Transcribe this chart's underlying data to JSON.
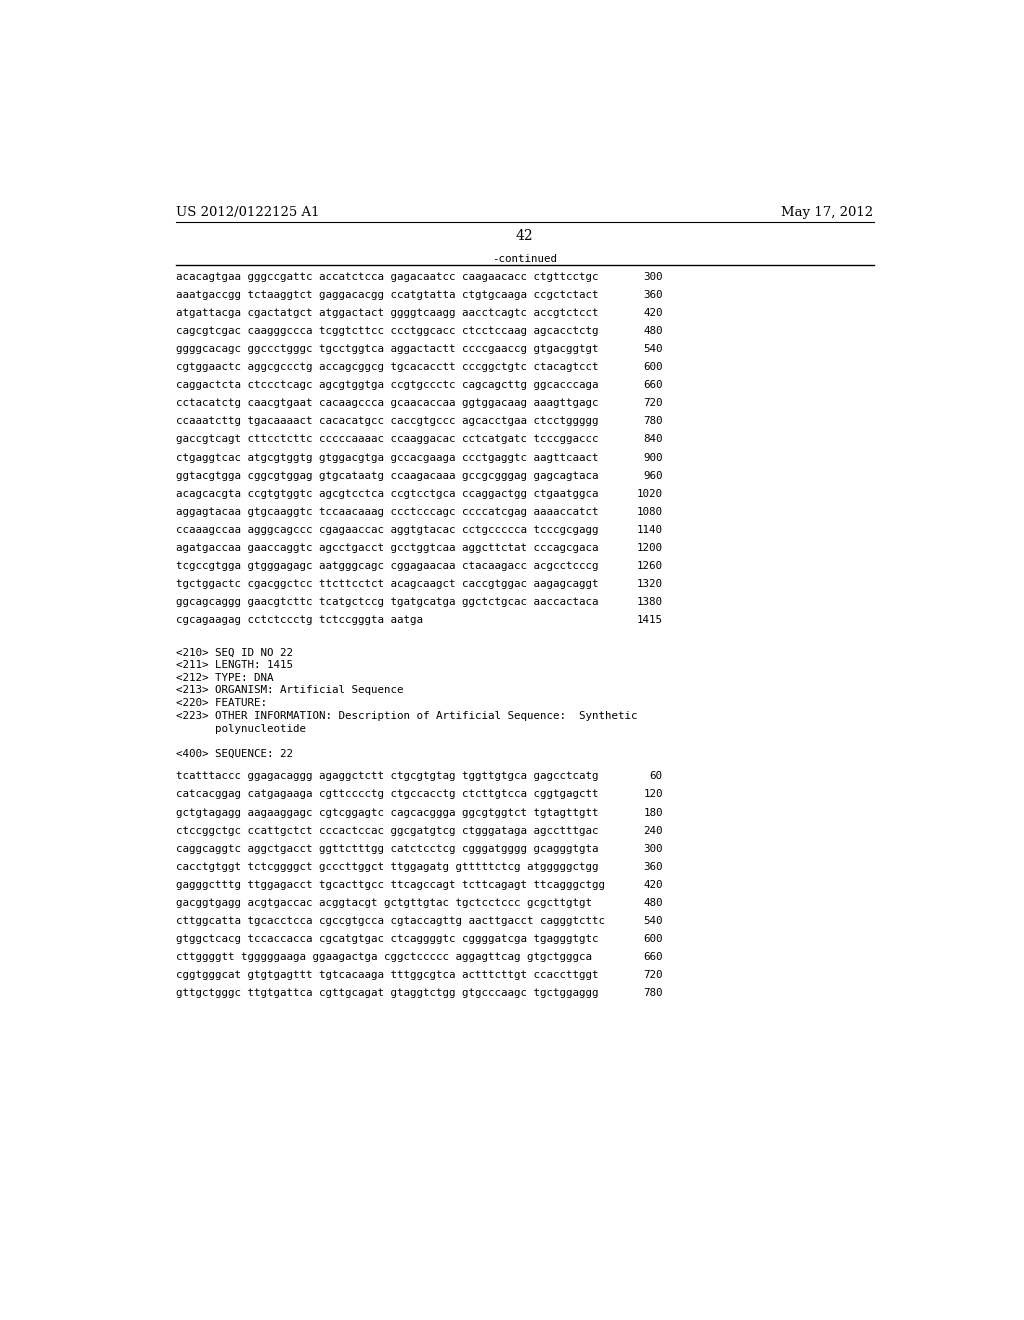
{
  "header_left": "US 2012/0122125 A1",
  "header_right": "May 17, 2012",
  "page_number": "42",
  "continued_label": "-continued",
  "background_color": "#ffffff",
  "text_color": "#000000",
  "font_size_header": 9.5,
  "font_size_body": 7.8,
  "font_size_page": 10.0,
  "sequence_lines_top": [
    [
      "acacagtgaa gggccgattc accatctcca gagacaatcc caagaacacc ctgttcctgc",
      "300"
    ],
    [
      "aaatgaccgg tctaaggtct gaggacacgg ccatgtatta ctgtgcaaga ccgctctact",
      "360"
    ],
    [
      "atgattacga cgactatgct atggactact ggggtcaagg aacctcagtc accgtctcct",
      "420"
    ],
    [
      "cagcgtcgac caagggccca tcggtcttcc ccctggcacc ctcctccaag agcacctctg",
      "480"
    ],
    [
      "ggggcacagc ggccctgggc tgcctggtca aggactactt ccccgaaccg gtgacggtgt",
      "540"
    ],
    [
      "cgtggaactc aggcgccctg accagcggcg tgcacacctt cccggctgtc ctacagtcct",
      "600"
    ],
    [
      "caggactcta ctccctcagc agcgtggtga ccgtgccctc cagcagcttg ggcacccaga",
      "660"
    ],
    [
      "cctacatctg caacgtgaat cacaagccca gcaacaccaa ggtggacaag aaagttgagc",
      "720"
    ],
    [
      "ccaaatcttg tgacaaaact cacacatgcc caccgtgccc agcacctgaa ctcctggggg",
      "780"
    ],
    [
      "gaccgtcagt cttcctcttc cccccaaaac ccaaggacac cctcatgatc tcccggaccc",
      "840"
    ],
    [
      "ctgaggtcac atgcgtggtg gtggacgtga gccacgaaga ccctgaggtc aagttcaact",
      "900"
    ],
    [
      "ggtacgtgga cggcgtggag gtgcataatg ccaagacaaa gccgcgggag gagcagtaca",
      "960"
    ],
    [
      "acagcacgta ccgtgtggtc agcgtcctca ccgtcctgca ccaggactgg ctgaatggca",
      "1020"
    ],
    [
      "aggagtacaa gtgcaaggtc tccaacaaag ccctcccagc ccccatcgag aaaaccatct",
      "1080"
    ],
    [
      "ccaaagccaa agggcagccc cgagaaccac aggtgtacac cctgccccca tcccgcgagg",
      "1140"
    ],
    [
      "agatgaccaa gaaccaggtc agcctgacct gcctggtcaa aggcttctat cccagcgaca",
      "1200"
    ],
    [
      "tcgccgtgga gtgggagagc aatgggcagc cggagaacaa ctacaagacc acgcctcccg",
      "1260"
    ],
    [
      "tgctggactc cgacggctcc ttcttcctct acagcaagct caccgtggac aagagcaggt",
      "1320"
    ],
    [
      "ggcagcaggg gaacgtcttc tcatgctccg tgatgcatga ggctctgcac aaccactaca",
      "1380"
    ],
    [
      "cgcagaagag cctctccctg tctccgggta aatga",
      "1415"
    ]
  ],
  "metadata_lines": [
    "<210> SEQ ID NO 22",
    "<211> LENGTH: 1415",
    "<212> TYPE: DNA",
    "<213> ORGANISM: Artificial Sequence",
    "<220> FEATURE:",
    "<223> OTHER INFORMATION: Description of Artificial Sequence:  Synthetic",
    "      polynucleotide"
  ],
  "sequence_label": "<400> SEQUENCE: 22",
  "sequence_lines_bottom": [
    [
      "tcatttaccc ggagacaggg agaggctctt ctgcgtgtag tggttgtgca gagcctcatg",
      "60"
    ],
    [
      "catcacggag catgagaaga cgttcccctg ctgccacctg ctcttgtcca cggtgagctt",
      "120"
    ],
    [
      "gctgtagagg aagaaggagc cgtcggagtc cagcacggga ggcgtggtct tgtagttgtt",
      "180"
    ],
    [
      "ctccggctgc ccattgctct cccactccac ggcgatgtcg ctgggataga agcctttgac",
      "240"
    ],
    [
      "caggcaggtc aggctgacct ggttctttgg catctcctcg cgggatgggg gcagggtgta",
      "300"
    ],
    [
      "cacctgtggt tctcggggct gcccttggct ttggagatg gtttttctcg atgggggctgg",
      "360"
    ],
    [
      "gagggctttg ttggagacct tgcacttgcc ttcagccagt tcttcagagt ttcagggctgg",
      "420"
    ],
    [
      "gacggtgagg acgtgaccac acggtacgt gctgttgtac tgctcctccc gcgcttgtgt",
      "480"
    ],
    [
      "cttggcatta tgcacctcca cgccgtgcca cgtaccagttg aacttgacct cagggtcttc",
      "540"
    ],
    [
      "gtggctcacg tccaccacca cgcatgtgac ctcaggggtc cggggatcga tgagggtgtc",
      "600"
    ],
    [
      "cttggggtt tgggggaaga ggaagactga cggctccccc aggagttcag gtgctgggca",
      "660"
    ],
    [
      "cggtgggcat gtgtgagttt tgtcacaaga tttggcgtca actttcttgt ccaccttggt",
      "720"
    ],
    [
      "gttgctgggc ttgtgattca cgttgcagat gtaggtctgg gtgcccaagc tgctggaggg",
      "780"
    ]
  ]
}
